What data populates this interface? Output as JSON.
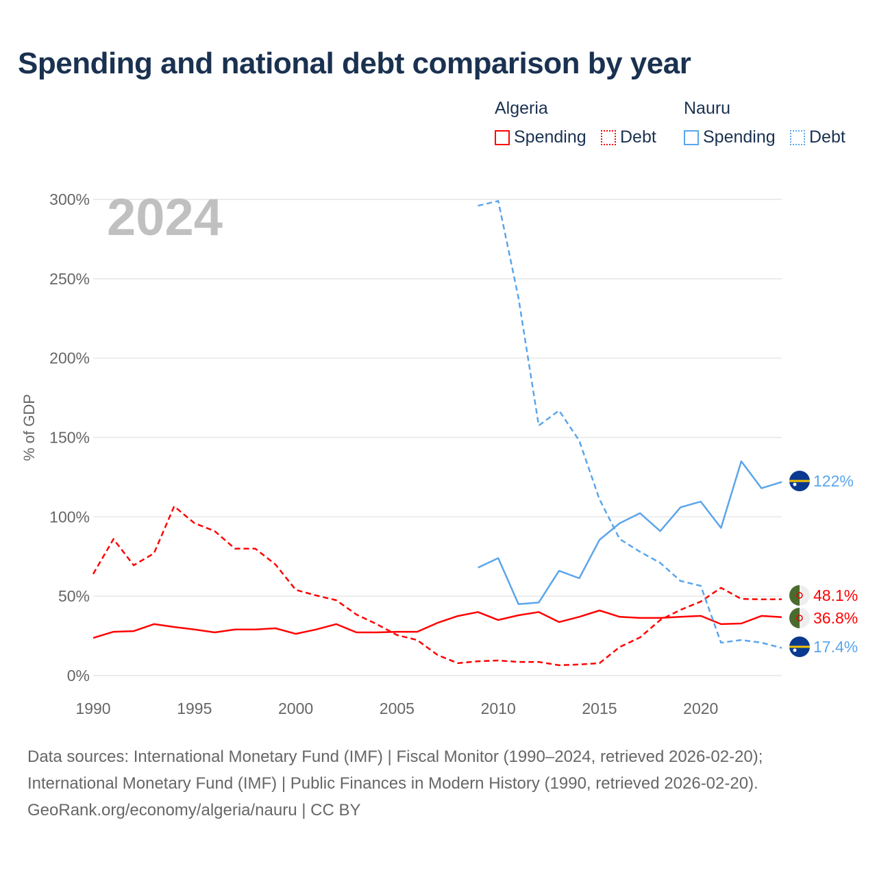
{
  "title": "Spending and national debt comparison by year",
  "legend": {
    "groups": [
      {
        "name": "Algeria",
        "items": [
          "Spending",
          "Debt"
        ],
        "color": "#ff0000"
      },
      {
        "name": "Nauru",
        "items": [
          "Spending",
          "Debt"
        ],
        "color": "#5aa5ea"
      }
    ]
  },
  "sources": [
    "Data sources: International Monetary Fund (IMF) | Fiscal Monitor (1990–2024, retrieved 2026-02-20);",
    "International Monetary Fund (IMF) | Public Finances in Modern History (1990, retrieved 2026-02-20).",
    "GeoRank.org/economy/algeria/nauru | CC BY"
  ],
  "chart_data": {
    "type": "line",
    "title": "Spending and national debt comparison by year",
    "year_label": "2024",
    "xlabel": "",
    "ylabel": "% of GDP",
    "xlim": [
      1990,
      2024
    ],
    "ylim": [
      0,
      300
    ],
    "xticks": [
      1990,
      1995,
      2000,
      2005,
      2010,
      2015,
      2020
    ],
    "yticks": [
      0,
      50,
      100,
      150,
      200,
      250,
      300
    ],
    "ytick_labels": [
      "0%",
      "50%",
      "100%",
      "150%",
      "200%",
      "250%",
      "300%"
    ],
    "grid": true,
    "legend_position": "top-right",
    "series": [
      {
        "name": "Algeria Spending",
        "color": "#ff0000",
        "dash": false,
        "end_label": "36.8%",
        "flag": "algeria",
        "x": [
          1990,
          1991,
          1992,
          1993,
          1994,
          1995,
          1996,
          1997,
          1998,
          1999,
          2000,
          2001,
          2002,
          2003,
          2004,
          2005,
          2006,
          2007,
          2008,
          2009,
          2010,
          2011,
          2012,
          2013,
          2014,
          2015,
          2016,
          2017,
          2018,
          2019,
          2020,
          2021,
          2022,
          2023,
          2024
        ],
        "y": [
          23.7,
          27.6,
          28,
          32.4,
          30.6,
          29,
          27.2,
          29,
          29,
          29.8,
          26.3,
          29,
          32.4,
          27.2,
          27.2,
          27.6,
          27.6,
          33.2,
          37.5,
          40,
          35,
          38,
          40,
          33.7,
          37,
          41,
          37,
          36.3,
          36.3,
          37,
          37.6,
          32.4,
          32.8,
          37.6,
          36.8
        ]
      },
      {
        "name": "Algeria Debt",
        "color": "#ff0000",
        "dash": true,
        "end_label": "48.1%",
        "flag": "algeria",
        "x": [
          1990,
          1991,
          1992,
          1993,
          1994,
          1995,
          1996,
          1997,
          1998,
          1999,
          2000,
          2001,
          2002,
          2003,
          2004,
          2005,
          2006,
          2007,
          2008,
          2009,
          2010,
          2011,
          2012,
          2013,
          2014,
          2015,
          2016,
          2017,
          2018,
          2019,
          2020,
          2021,
          2022,
          2023,
          2024
        ],
        "y": [
          64,
          86,
          69.5,
          77,
          106.6,
          96,
          91,
          80,
          80,
          70,
          54,
          50.5,
          47.5,
          38.4,
          32.4,
          25.5,
          22.4,
          13,
          7.8,
          9,
          9.5,
          8.6,
          8.6,
          6.5,
          7,
          7.8,
          18,
          24,
          35,
          41.4,
          46.6,
          55.3,
          48.3,
          48,
          48.1
        ]
      },
      {
        "name": "Nauru Spending",
        "color": "#5aa5ea",
        "dash": false,
        "end_label": "122%",
        "flag": "nauru",
        "x": [
          2009,
          2010,
          2011,
          2012,
          2013,
          2014,
          2015,
          2016,
          2017,
          2018,
          2019,
          2020,
          2021,
          2022,
          2023,
          2024
        ],
        "y": [
          68,
          74,
          45,
          46,
          66,
          61.3,
          85.5,
          96,
          102.3,
          91,
          106,
          109.6,
          93,
          135,
          118,
          122
        ]
      },
      {
        "name": "Nauru Debt",
        "color": "#5aa5ea",
        "dash": true,
        "end_label": "17.4%",
        "flag": "nauru",
        "x": [
          2009,
          2010,
          2011,
          2012,
          2013,
          2014,
          2015,
          2016,
          2017,
          2018,
          2019,
          2020,
          2021,
          2022,
          2023,
          2024
        ],
        "y": [
          296,
          299,
          238,
          157.5,
          167,
          148,
          111,
          86,
          78,
          71,
          59.6,
          56.5,
          20.7,
          22.4,
          20.7,
          17.4
        ]
      }
    ]
  }
}
